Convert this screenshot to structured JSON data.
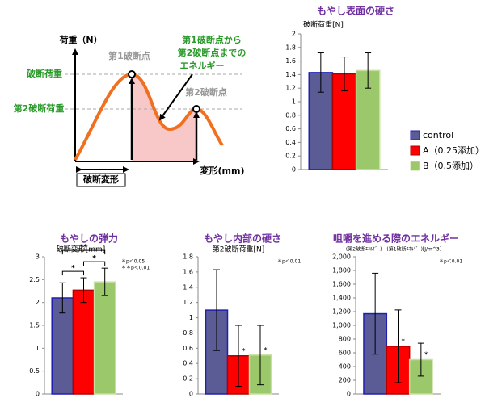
{
  "diagram": {
    "y_axis_label": "荷重（N）",
    "peak1_label": "第1破断点",
    "peak2_label": "第2破断点",
    "load_label": "破断荷重",
    "load2_label": "第2破断荷重",
    "energy_label": [
      "第1破断点から",
      "第2破断点までの",
      "エネルギー"
    ],
    "deformation_label": "破断変形",
    "x_axis_label": "変形(mm)"
  },
  "chart_data": [
    {
      "type": "bar",
      "title": "もやし表面の硬さ",
      "y_label": "破断荷重[N]",
      "categories": [
        null
      ],
      "series": [
        {
          "name": "control",
          "color": "#5b5b96",
          "values": [
            1.43
          ],
          "errors": [
            0.29
          ]
        },
        {
          "name": "A（0.25添加）",
          "color": "#ff0000",
          "values": [
            1.41
          ],
          "errors": [
            0.25
          ]
        },
        {
          "name": "B（0.5添加）",
          "color": "#9bc86a",
          "values": [
            1.46
          ],
          "errors": [
            0.26
          ]
        }
      ],
      "ylim": [
        0,
        2
      ],
      "yticks": [
        0,
        0.2,
        0.4,
        0.6,
        0.8,
        1,
        1.2,
        1.4,
        1.6,
        1.8,
        2
      ],
      "legend": "right"
    },
    {
      "type": "bar",
      "title": "もやしの弾力",
      "y_label": "破断変形[mm]",
      "categories": [
        null
      ],
      "series": [
        {
          "color": "#5b5b96",
          "values": [
            2.1
          ],
          "errors": [
            0.33
          ]
        },
        {
          "color": "#ff0000",
          "values": [
            2.27
          ],
          "errors": [
            0.27
          ]
        },
        {
          "color": "#9bc86a",
          "values": [
            2.45
          ],
          "errors": [
            0.3
          ]
        }
      ],
      "ylim": [
        0,
        3
      ],
      "yticks": [
        0,
        0.5,
        1,
        1.5,
        2,
        2.5,
        3
      ],
      "annotations": [
        "＊p＜0.05",
        "＊＊p＜0.01"
      ],
      "brackets": [
        {
          "bars": [
            0,
            2
          ],
          "label": "**"
        },
        {
          "bars": [
            0,
            1
          ],
          "label": "*"
        },
        {
          "bars": [
            1,
            2
          ],
          "label": "*"
        }
      ]
    },
    {
      "type": "bar",
      "title": "もやし内部の硬さ",
      "y_label": "第2破断荷重[N]",
      "categories": [
        null
      ],
      "series": [
        {
          "color": "#5b5b96",
          "values": [
            1.1
          ],
          "errors": [
            0.53
          ]
        },
        {
          "color": "#ff0000",
          "values": [
            0.5
          ],
          "errors": [
            0.4
          ],
          "significance": "*"
        },
        {
          "color": "#9bc86a",
          "values": [
            0.51
          ],
          "errors": [
            0.39
          ],
          "significance": "*"
        }
      ],
      "ylim": [
        0,
        1.8
      ],
      "yticks": [
        0,
        0.2,
        0.4,
        0.6,
        0.8,
        1,
        1.2,
        1.4,
        1.6,
        1.8
      ],
      "annotations": [
        "＊p＜0.01"
      ]
    },
    {
      "type": "bar",
      "title": "咀嚼を進める際のエネルギー",
      "y_label": "(第2破断ｴﾈﾙｷﾞｰ)－(第1破断ｴﾈﾙｷﾞｰ)[J/m^3]",
      "categories": [
        null
      ],
      "series": [
        {
          "color": "#5b5b96",
          "values": [
            1170
          ],
          "errors": [
            590
          ]
        },
        {
          "color": "#ff0000",
          "values": [
            695
          ],
          "errors": [
            530
          ],
          "significance": "*"
        },
        {
          "color": "#9bc86a",
          "values": [
            500
          ],
          "errors": [
            240
          ],
          "significance": "*"
        }
      ],
      "ylim": [
        0,
        2000
      ],
      "yticks": [
        0,
        200,
        400,
        600,
        800,
        {
          "value": 1000,
          "label": "1,000"
        },
        {
          "value": 1200,
          "label": "1,200"
        },
        {
          "value": 1400,
          "label": "1,400"
        },
        {
          "value": 1600,
          "label": "1,600"
        },
        {
          "value": 1800,
          "label": "1,800"
        },
        {
          "value": 2000,
          "label": "2,000"
        }
      ],
      "annotations": [
        "＊p＜0.01"
      ]
    }
  ]
}
